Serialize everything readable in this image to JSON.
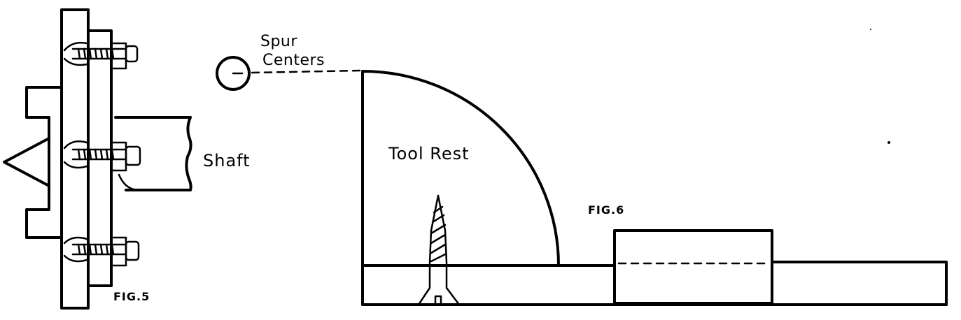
{
  "labels": {
    "shaft": "Shaft",
    "spur_line1": "Spur",
    "spur_line2": "Centers",
    "tool_rest": "Tool Rest",
    "fig5": "FIG.5",
    "fig6": "FIG.6"
  },
  "colors": {
    "ink": "#000000",
    "paper": "#ffffff"
  }
}
